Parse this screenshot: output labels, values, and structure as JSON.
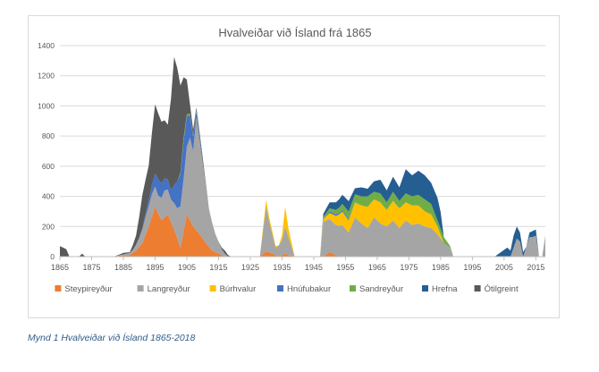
{
  "caption": "Mynd 1 Hvalveiðar við Ísland 1865-2018",
  "chart_data": {
    "type": "area",
    "stacked": true,
    "title": "Hvalveiðar við Ísland frá 1865",
    "xlabel": "",
    "ylabel": "",
    "xlim": [
      1865,
      2018
    ],
    "ylim": [
      0,
      1400
    ],
    "yticks": [
      0,
      200,
      400,
      600,
      800,
      1000,
      1200,
      1400
    ],
    "xticks": [
      1865,
      1875,
      1885,
      1895,
      1905,
      1915,
      1925,
      1935,
      1945,
      1955,
      1965,
      1975,
      1985,
      1995,
      2005,
      2015
    ],
    "grid": "horizontal",
    "legend_position": "bottom",
    "series": [
      {
        "name": "Steypireyður",
        "color": "#ed7d31",
        "points": [
          [
            1865,
            0
          ],
          [
            1882,
            0
          ],
          [
            1885,
            10
          ],
          [
            1887,
            10
          ],
          [
            1889,
            40
          ],
          [
            1891,
            90
          ],
          [
            1893,
            200
          ],
          [
            1895,
            330
          ],
          [
            1897,
            240
          ],
          [
            1899,
            280
          ],
          [
            1901,
            180
          ],
          [
            1903,
            60
          ],
          [
            1905,
            280
          ],
          [
            1907,
            200
          ],
          [
            1909,
            150
          ],
          [
            1911,
            90
          ],
          [
            1913,
            40
          ],
          [
            1915,
            20
          ],
          [
            1917,
            0
          ],
          [
            1928,
            0
          ],
          [
            1930,
            35
          ],
          [
            1932,
            20
          ],
          [
            1934,
            0
          ],
          [
            1936,
            20
          ],
          [
            1937,
            10
          ],
          [
            1939,
            0
          ],
          [
            1948,
            0
          ],
          [
            1950,
            30
          ],
          [
            1953,
            0
          ],
          [
            2018,
            0
          ]
        ]
      },
      {
        "name": "Langreyður",
        "color": "#a5a5a5",
        "points": [
          [
            1865,
            0
          ],
          [
            1882,
            0
          ],
          [
            1885,
            5
          ],
          [
            1888,
            20
          ],
          [
            1890,
            60
          ],
          [
            1892,
            120
          ],
          [
            1894,
            150
          ],
          [
            1896,
            120
          ],
          [
            1898,
            180
          ],
          [
            1900,
            150
          ],
          [
            1902,
            200
          ],
          [
            1904,
            350
          ],
          [
            1906,
            550
          ],
          [
            1907,
            500
          ],
          [
            1908,
            750
          ],
          [
            1910,
            500
          ],
          [
            1912,
            250
          ],
          [
            1914,
            120
          ],
          [
            1916,
            40
          ],
          [
            1918,
            0
          ],
          [
            1928,
            0
          ],
          [
            1930,
            300
          ],
          [
            1931,
            200
          ],
          [
            1933,
            50
          ],
          [
            1935,
            100
          ],
          [
            1936,
            180
          ],
          [
            1937,
            120
          ],
          [
            1939,
            0
          ],
          [
            1947,
            0
          ],
          [
            1948,
            230
          ],
          [
            1950,
            220
          ],
          [
            1952,
            200
          ],
          [
            1954,
            210
          ],
          [
            1956,
            160
          ],
          [
            1958,
            260
          ],
          [
            1960,
            220
          ],
          [
            1962,
            190
          ],
          [
            1964,
            260
          ],
          [
            1966,
            220
          ],
          [
            1968,
            200
          ],
          [
            1970,
            240
          ],
          [
            1972,
            190
          ],
          [
            1974,
            240
          ],
          [
            1976,
            210
          ],
          [
            1978,
            220
          ],
          [
            1980,
            200
          ],
          [
            1982,
            190
          ],
          [
            1984,
            150
          ],
          [
            1986,
            90
          ],
          [
            1988,
            60
          ],
          [
            1989,
            0
          ],
          [
            2007,
            0
          ],
          [
            2009,
            120
          ],
          [
            2010,
            100
          ],
          [
            2011,
            0
          ],
          [
            2013,
            130
          ],
          [
            2014,
            130
          ],
          [
            2015,
            140
          ],
          [
            2016,
            0
          ],
          [
            2017,
            0
          ],
          [
            2018,
            140
          ]
        ]
      },
      {
        "name": "Búrhvalur",
        "color": "#ffc000",
        "points": [
          [
            1865,
            0
          ],
          [
            1928,
            0
          ],
          [
            1930,
            40
          ],
          [
            1932,
            20
          ],
          [
            1934,
            0
          ],
          [
            1935,
            30
          ],
          [
            1936,
            130
          ],
          [
            1937,
            60
          ],
          [
            1939,
            0
          ],
          [
            1947,
            0
          ],
          [
            1948,
            20
          ],
          [
            1950,
            40
          ],
          [
            1952,
            60
          ],
          [
            1954,
            90
          ],
          [
            1956,
            80
          ],
          [
            1958,
            100
          ],
          [
            1960,
            120
          ],
          [
            1962,
            140
          ],
          [
            1964,
            120
          ],
          [
            1966,
            140
          ],
          [
            1968,
            110
          ],
          [
            1970,
            130
          ],
          [
            1972,
            130
          ],
          [
            1974,
            120
          ],
          [
            1976,
            130
          ],
          [
            1978,
            120
          ],
          [
            1980,
            100
          ],
          [
            1982,
            90
          ],
          [
            1984,
            50
          ],
          [
            1986,
            0
          ],
          [
            2018,
            0
          ]
        ]
      },
      {
        "name": "Hnúfubakur",
        "color": "#4472c4",
        "points": [
          [
            1865,
            0
          ],
          [
            1890,
            0
          ],
          [
            1892,
            20
          ],
          [
            1894,
            60
          ],
          [
            1896,
            110
          ],
          [
            1898,
            80
          ],
          [
            1900,
            60
          ],
          [
            1902,
            180
          ],
          [
            1904,
            250
          ],
          [
            1906,
            150
          ],
          [
            1908,
            40
          ],
          [
            1910,
            10
          ],
          [
            1912,
            0
          ],
          [
            1947,
            0
          ],
          [
            1950,
            10
          ],
          [
            1955,
            10
          ],
          [
            1960,
            0
          ],
          [
            2018,
            0
          ]
        ]
      },
      {
        "name": "Sandreyður",
        "color": "#70ad47",
        "points": [
          [
            1865,
            0
          ],
          [
            1902,
            0
          ],
          [
            1904,
            20
          ],
          [
            1906,
            10
          ],
          [
            1908,
            5
          ],
          [
            1910,
            0
          ],
          [
            1947,
            0
          ],
          [
            1948,
            10
          ],
          [
            1950,
            20
          ],
          [
            1952,
            30
          ],
          [
            1954,
            40
          ],
          [
            1956,
            50
          ],
          [
            1958,
            50
          ],
          [
            1960,
            60
          ],
          [
            1962,
            70
          ],
          [
            1964,
            50
          ],
          [
            1966,
            60
          ],
          [
            1968,
            50
          ],
          [
            1970,
            60
          ],
          [
            1972,
            50
          ],
          [
            1974,
            60
          ],
          [
            1976,
            60
          ],
          [
            1978,
            70
          ],
          [
            1980,
            80
          ],
          [
            1982,
            70
          ],
          [
            1984,
            40
          ],
          [
            1986,
            40
          ],
          [
            1988,
            10
          ],
          [
            1989,
            0
          ],
          [
            2018,
            0
          ]
        ]
      },
      {
        "name": "Hrefna",
        "color": "#255e91",
        "points": [
          [
            1865,
            0
          ],
          [
            1947,
            0
          ],
          [
            1948,
            20
          ],
          [
            1950,
            40
          ],
          [
            1952,
            50
          ],
          [
            1954,
            60
          ],
          [
            1956,
            70
          ],
          [
            1958,
            40
          ],
          [
            1960,
            60
          ],
          [
            1962,
            50
          ],
          [
            1964,
            70
          ],
          [
            1966,
            90
          ],
          [
            1968,
            80
          ],
          [
            1970,
            100
          ],
          [
            1972,
            90
          ],
          [
            1974,
            160
          ],
          [
            1976,
            140
          ],
          [
            1978,
            160
          ],
          [
            1980,
            160
          ],
          [
            1982,
            140
          ],
          [
            1984,
            150
          ],
          [
            1985,
            110
          ],
          [
            1986,
            0
          ],
          [
            2002,
            0
          ],
          [
            2004,
            30
          ],
          [
            2006,
            60
          ],
          [
            2007,
            40
          ],
          [
            2008,
            80
          ],
          [
            2009,
            80
          ],
          [
            2010,
            60
          ],
          [
            2011,
            30
          ],
          [
            2012,
            0
          ],
          [
            2013,
            30
          ],
          [
            2014,
            40
          ],
          [
            2015,
            40
          ],
          [
            2016,
            0
          ],
          [
            2018,
            0
          ]
        ]
      },
      {
        "name": "Ótilgreint",
        "color": "#595959",
        "points": [
          [
            1865,
            70
          ],
          [
            1867,
            50
          ],
          [
            1868,
            0
          ],
          [
            1871,
            0
          ],
          [
            1872,
            20
          ],
          [
            1873,
            0
          ],
          [
            1882,
            0
          ],
          [
            1885,
            10
          ],
          [
            1887,
            5
          ],
          [
            1889,
            60
          ],
          [
            1891,
            220
          ],
          [
            1893,
            230
          ],
          [
            1895,
            460
          ],
          [
            1897,
            410
          ],
          [
            1899,
            360
          ],
          [
            1901,
            850
          ],
          [
            1902,
            750
          ],
          [
            1904,
            400
          ],
          [
            1906,
            60
          ],
          [
            1908,
            20
          ],
          [
            1910,
            30
          ],
          [
            1912,
            0
          ],
          [
            1915,
            0
          ],
          [
            1917,
            20
          ],
          [
            1919,
            0
          ],
          [
            2018,
            0
          ]
        ]
      }
    ]
  }
}
